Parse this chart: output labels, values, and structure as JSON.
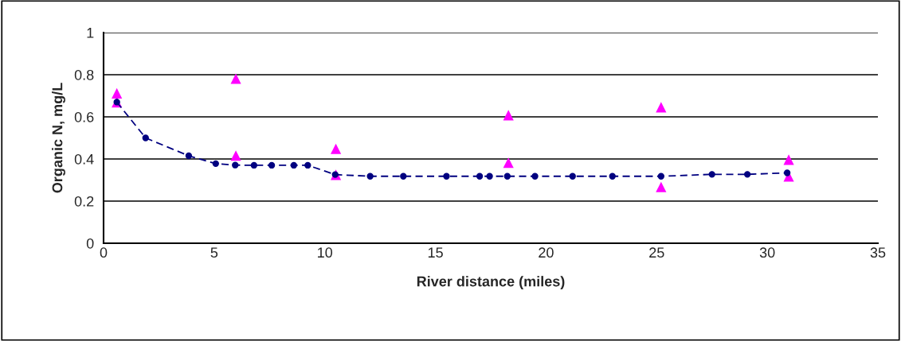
{
  "chart_data": {
    "type": "scatter",
    "xlabel": "River distance (miles)",
    "ylabel": "Organic N, mg/L",
    "xlim": [
      0,
      35
    ],
    "xticks": [
      0,
      5,
      10,
      15,
      20,
      25,
      30,
      35
    ],
    "ylim": [
      0,
      1
    ],
    "yticks": [
      0,
      {
        "value": 0.2,
        "label": "0.2"
      },
      {
        "value": 0.4,
        "label": "0.4"
      },
      {
        "value": 0.6,
        "label": "0.6"
      },
      {
        "value": 0.8,
        "label": "0.8"
      },
      1
    ],
    "grid": "y",
    "legend": false,
    "series": [
      {
        "type": "line",
        "color": "#000080",
        "marker": "circle",
        "line_style": "dashed",
        "x": [
          0.6,
          1.9,
          3.85,
          5.07,
          5.95,
          6.8,
          7.6,
          8.6,
          9.23,
          10.47,
          12.05,
          13.55,
          15.5,
          17.0,
          17.45,
          18.25,
          19.5,
          21.2,
          23.0,
          25.2,
          27.5,
          29.1,
          30.9
        ],
        "values": [
          0.67,
          0.5,
          0.415,
          0.378,
          0.371,
          0.37,
          0.37,
          0.37,
          0.37,
          0.326,
          0.318,
          0.318,
          0.318,
          0.318,
          0.318,
          0.318,
          0.318,
          0.318,
          0.318,
          0.318,
          0.327,
          0.327,
          0.334
        ]
      },
      {
        "color": "#ff00ff",
        "marker": "triangle",
        "x": [
          0.6,
          0.6,
          5.98,
          5.98,
          10.5,
          10.5,
          18.3,
          18.3,
          25.2,
          25.2,
          30.97,
          30.97
        ],
        "values": [
          0.712,
          0.669,
          0.781,
          0.416,
          0.448,
          0.325,
          0.608,
          0.382,
          0.646,
          0.267,
          0.397,
          0.317
        ]
      }
    ]
  }
}
